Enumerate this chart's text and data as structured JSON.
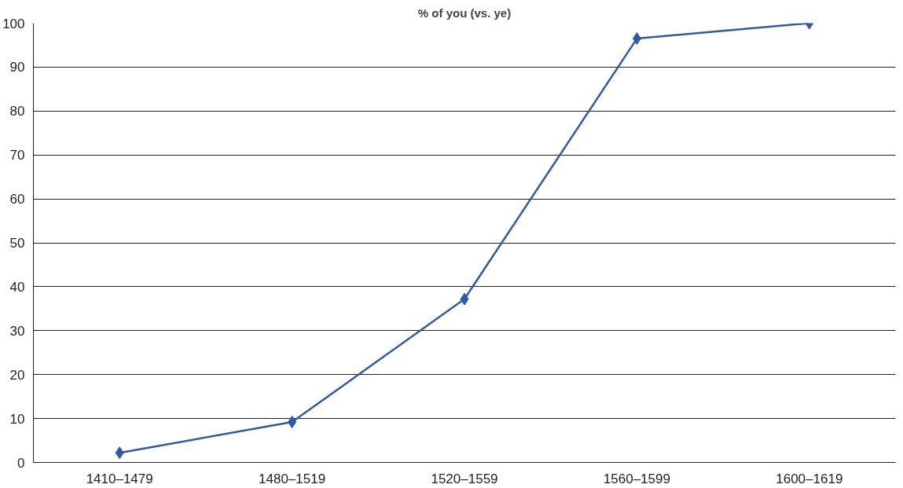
{
  "chart_data": {
    "type": "line",
    "title": "% of you (vs. ye)",
    "categories": [
      "1410–1479",
      "1480–1519",
      "1520–1559",
      "1560–1599",
      "1600–1619"
    ],
    "series": [
      {
        "color": "#2f5aa8",
        "values": [
          2.2,
          9.2,
          37.2,
          96.5,
          100
        ]
      }
    ],
    "ylim": [
      0,
      100
    ],
    "yticks": [
      0,
      10,
      20,
      30,
      40,
      50,
      60,
      70,
      80,
      90,
      100
    ],
    "grid": "y",
    "marker": "diamond",
    "line_style": "solid"
  }
}
